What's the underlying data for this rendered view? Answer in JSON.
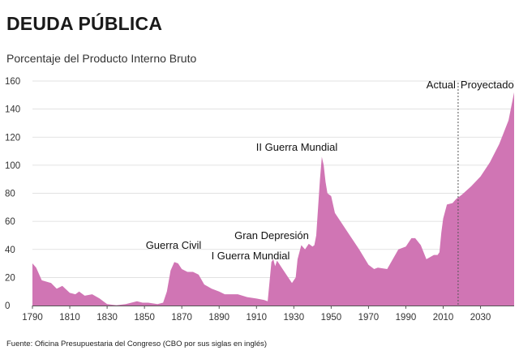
{
  "header": {
    "title": "DEUDA PÚBLICA"
  },
  "footer": {
    "source": "Fuente: Oficina Presupuestaria del Congreso (CBO por sus siglas en inglés)"
  },
  "chart_data": {
    "type": "area",
    "title": "DEUDA PÚBLICA",
    "subtitle": "Porcentaje del Producto Interno Bruto",
    "xlabel": "",
    "ylabel": "Porcentaje del Producto Interno Bruto",
    "xlim": [
      1790,
      2048
    ],
    "ylim": [
      0,
      160
    ],
    "grid": "horizontal",
    "colors": {
      "fill": "#d075b4",
      "grid": "#d9d9d9",
      "axis": "#555555",
      "divider": "#555555"
    },
    "x_ticks": [
      1790,
      1810,
      1830,
      1850,
      1870,
      1890,
      1910,
      1930,
      1950,
      1970,
      1990,
      2010,
      2030
    ],
    "y_ticks": [
      0,
      20,
      40,
      60,
      80,
      100,
      120,
      140,
      160
    ],
    "series": [
      {
        "name": "Deuda pública",
        "x": [
          1790,
          1792,
          1795,
          1800,
          1803,
          1806,
          1810,
          1813,
          1815,
          1818,
          1822,
          1826,
          1830,
          1833,
          1835,
          1840,
          1843,
          1846,
          1849,
          1852,
          1857,
          1860,
          1862,
          1864,
          1866,
          1868,
          1870,
          1873,
          1876,
          1879,
          1882,
          1886,
          1890,
          1893,
          1897,
          1900,
          1905,
          1910,
          1914,
          1916,
          1918,
          1919,
          1920,
          1921,
          1922,
          1924,
          1927,
          1929,
          1931,
          1932,
          1934,
          1936,
          1938,
          1940,
          1941,
          1942,
          1943,
          1944,
          1945,
          1946,
          1947,
          1948,
          1950,
          1952,
          1955,
          1960,
          1965,
          1970,
          1973,
          1975,
          1980,
          1983,
          1986,
          1990,
          1993,
          1995,
          1998,
          2001,
          2005,
          2007,
          2008,
          2009,
          2010,
          2012,
          2015,
          2017,
          2019,
          2020,
          2025,
          2030,
          2035,
          2040,
          2045,
          2048
        ],
        "values": [
          30,
          27,
          18,
          16,
          12,
          14,
          9,
          8,
          10,
          7,
          8,
          5,
          1,
          0.5,
          0.2,
          1,
          2,
          3,
          2,
          2,
          1,
          2,
          10,
          25,
          31,
          30,
          26,
          24,
          24,
          22,
          15,
          12,
          10,
          8,
          8,
          8,
          6,
          5,
          4,
          3,
          31,
          33,
          28,
          32,
          30,
          26,
          20,
          16,
          20,
          33,
          43,
          40,
          44,
          42,
          43,
          50,
          70,
          90,
          106,
          100,
          88,
          80,
          78,
          66,
          60,
          50,
          40,
          29,
          26,
          27,
          26,
          33,
          40,
          42,
          48,
          48,
          43,
          33,
          36,
          36,
          38,
          52,
          62,
          72,
          73,
          76,
          78,
          79,
          85,
          92,
          102,
          115,
          132,
          152
        ]
      }
    ],
    "divider": {
      "x": 2018,
      "left_label": "Actual",
      "right_label": "Proyectado"
    },
    "annotations": [
      {
        "label": "Guerra Civil",
        "year": 1866
      },
      {
        "label": "I Guerra Mundial",
        "year": 1919
      },
      {
        "label": "Gran Depresión",
        "year": 1933
      },
      {
        "label": "II Guerra Mundial",
        "year": 1945
      }
    ]
  }
}
